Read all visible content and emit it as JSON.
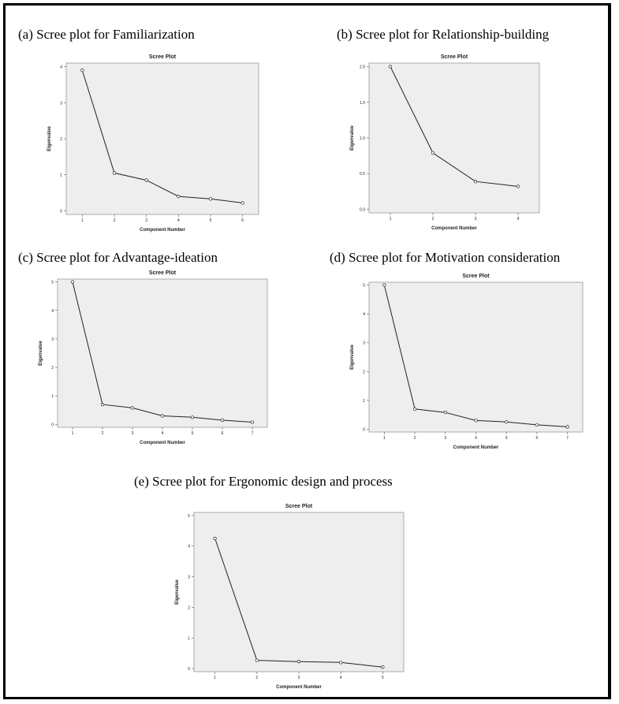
{
  "figure": {
    "captions": {
      "a": "(a) Scree plot for Familiarization",
      "b": "(b) Scree plot for Relationship-building",
      "c": "(c) Scree plot for Advantage-ideation",
      "d": "(d) Scree plot for Motivation consideration",
      "e": "(e) Scree plot for Ergonomic design and process"
    }
  },
  "chart_data": [
    {
      "id": "a",
      "type": "line",
      "title": "Scree Plot",
      "xlabel": "Component Number",
      "ylabel": "Eigenvalue",
      "x": [
        1,
        2,
        3,
        4,
        5,
        6
      ],
      "y": [
        3.9,
        1.05,
        0.85,
        0.4,
        0.33,
        0.22
      ],
      "xlim": [
        0.5,
        6.5
      ],
      "ylim": [
        -0.1,
        4.1
      ],
      "yticks": [
        0,
        1,
        2,
        3,
        4
      ],
      "ytick_labels": [
        "0",
        "1",
        "2",
        "3",
        "4"
      ],
      "grid": false
    },
    {
      "id": "b",
      "type": "line",
      "title": "Scree Plot",
      "xlabel": "Component Number",
      "ylabel": "Eigenvalue",
      "x": [
        1,
        2,
        3,
        4
      ],
      "y": [
        2.0,
        0.79,
        0.39,
        0.32
      ],
      "xlim": [
        0.5,
        4.5
      ],
      "ylim": [
        -0.05,
        2.05
      ],
      "yticks": [
        0.0,
        0.5,
        1.0,
        1.5,
        2.0
      ],
      "ytick_labels": [
        "0.0",
        "0.5",
        "1.0",
        "1.5",
        "2.0"
      ],
      "grid": false
    },
    {
      "id": "c",
      "type": "line",
      "title": "Scree Plot",
      "xlabel": "Component Number",
      "ylabel": "Eigenvalue",
      "x": [
        1,
        2,
        3,
        4,
        5,
        6,
        7
      ],
      "y": [
        5.0,
        0.7,
        0.58,
        0.3,
        0.25,
        0.15,
        0.08
      ],
      "xlim": [
        0.5,
        7.5
      ],
      "ylim": [
        -0.1,
        5.1
      ],
      "yticks": [
        0,
        1,
        2,
        3,
        4,
        5
      ],
      "ytick_labels": [
        "0",
        "1",
        "2",
        "3",
        "4",
        "5"
      ],
      "grid": false
    },
    {
      "id": "d",
      "type": "line",
      "title": "Scree Plot",
      "xlabel": "Component Number",
      "ylabel": "Eigenvalue",
      "x": [
        1,
        2,
        3,
        4,
        5,
        6,
        7
      ],
      "y": [
        5.0,
        0.7,
        0.58,
        0.3,
        0.25,
        0.15,
        0.08
      ],
      "xlim": [
        0.5,
        7.5
      ],
      "ylim": [
        -0.1,
        5.1
      ],
      "yticks": [
        0,
        1,
        2,
        3,
        4,
        5
      ],
      "ytick_labels": [
        "0",
        "1",
        "2",
        "3",
        "4",
        "5"
      ],
      "grid": false
    },
    {
      "id": "e",
      "type": "line",
      "title": "Scree Plot",
      "xlabel": "Component Number",
      "ylabel": "Eigenvalue",
      "x": [
        1,
        2,
        3,
        4,
        5
      ],
      "y": [
        4.25,
        0.27,
        0.23,
        0.2,
        0.05
      ],
      "xlim": [
        0.5,
        5.5
      ],
      "ylim": [
        -0.1,
        5.1
      ],
      "yticks": [
        0,
        1,
        2,
        3,
        4,
        5
      ],
      "ytick_labels": [
        "0",
        "1",
        "2",
        "3",
        "4",
        "5"
      ],
      "grid": false
    }
  ]
}
